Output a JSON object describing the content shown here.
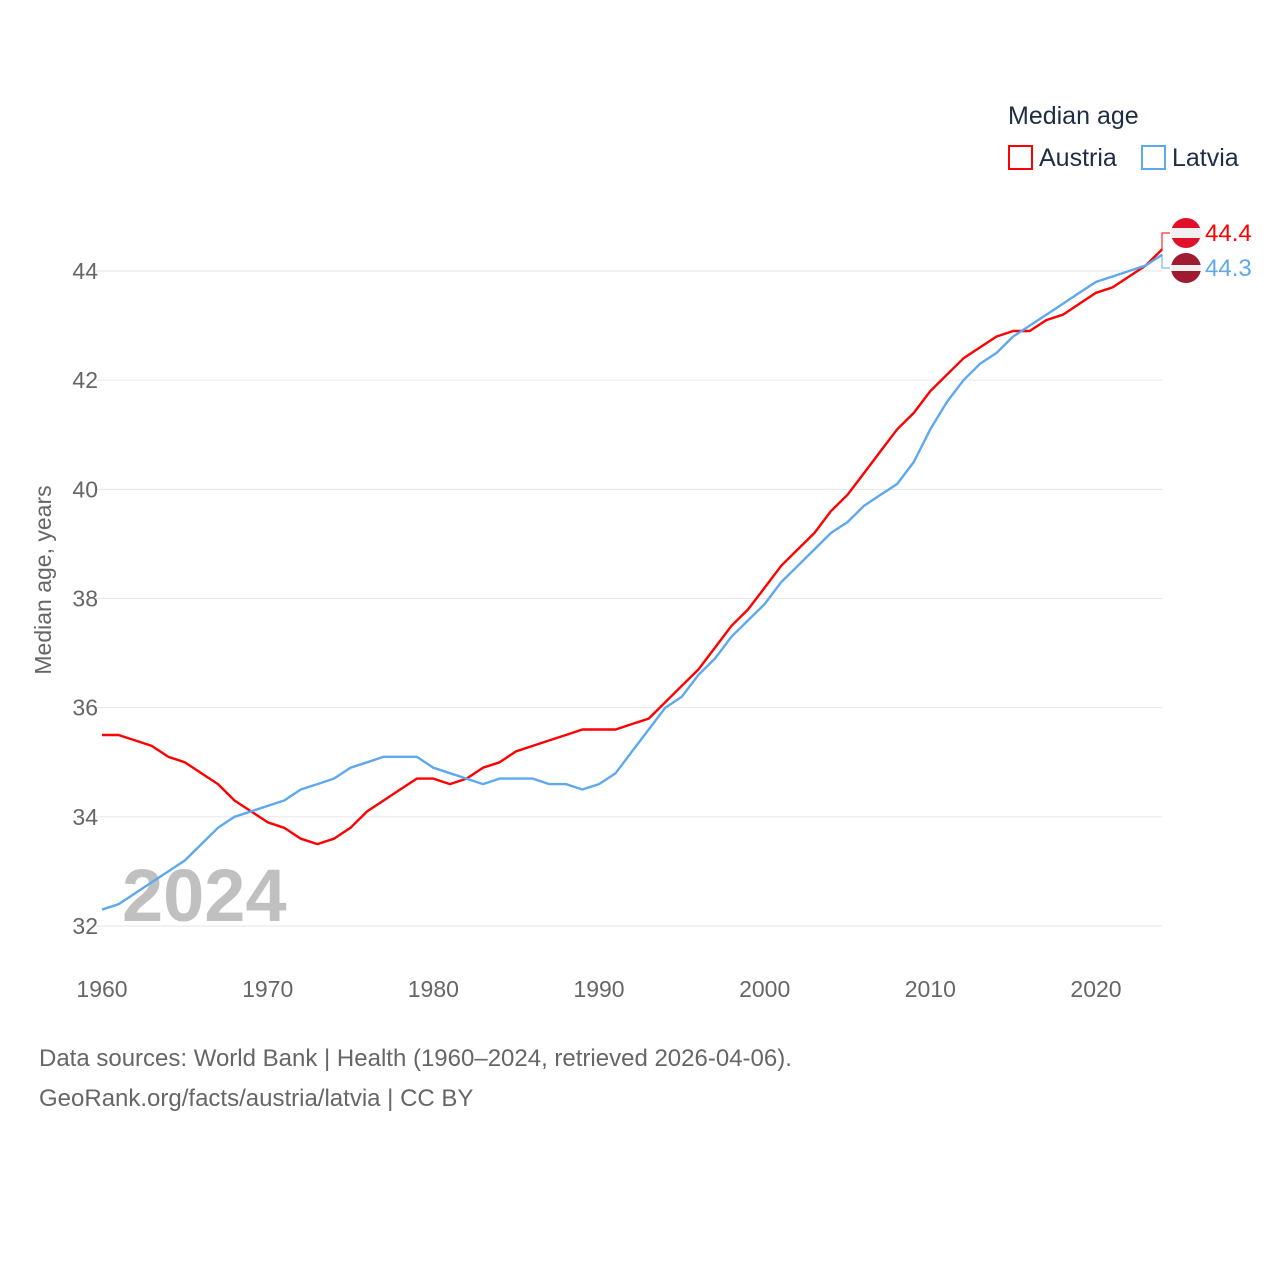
{
  "chart_data": {
    "type": "line",
    "legend_title": "Median age",
    "legend_placement": "top-right",
    "ylabel": "Median age, years",
    "xlabel": "",
    "watermark_year": "2024",
    "xlim": [
      1960,
      2024
    ],
    "ylim": [
      32,
      44.4
    ],
    "x_ticks": [
      "1960",
      "1970",
      "1980",
      "1990",
      "2000",
      "2010",
      "2020"
    ],
    "y_ticks": [
      "32",
      "34",
      "36",
      "38",
      "40",
      "42",
      "44"
    ],
    "grid": true,
    "x": [
      1960,
      1961,
      1962,
      1963,
      1964,
      1965,
      1966,
      1967,
      1968,
      1969,
      1970,
      1971,
      1972,
      1973,
      1974,
      1975,
      1976,
      1977,
      1978,
      1979,
      1980,
      1981,
      1982,
      1983,
      1984,
      1985,
      1986,
      1987,
      1988,
      1989,
      1990,
      1991,
      1992,
      1993,
      1994,
      1995,
      1996,
      1997,
      1998,
      1999,
      2000,
      2001,
      2002,
      2003,
      2004,
      2005,
      2006,
      2007,
      2008,
      2009,
      2010,
      2011,
      2012,
      2013,
      2014,
      2015,
      2016,
      2017,
      2018,
      2019,
      2020,
      2021,
      2022,
      2023,
      2024
    ],
    "series": [
      {
        "name": "Austria",
        "color": "#ff0000",
        "end_label": "44.4",
        "values": [
          35.5,
          35.5,
          35.4,
          35.3,
          35.1,
          35.0,
          34.8,
          34.6,
          34.3,
          34.1,
          33.9,
          33.8,
          33.6,
          33.5,
          33.6,
          33.8,
          34.1,
          34.3,
          34.5,
          34.7,
          34.7,
          34.6,
          34.7,
          34.9,
          35.0,
          35.2,
          35.3,
          35.4,
          35.5,
          35.6,
          35.6,
          35.6,
          35.7,
          35.8,
          36.1,
          36.4,
          36.7,
          37.1,
          37.5,
          37.8,
          38.2,
          38.6,
          38.9,
          39.2,
          39.6,
          39.9,
          40.3,
          40.7,
          41.1,
          41.4,
          41.8,
          42.1,
          42.4,
          42.6,
          42.8,
          42.9,
          42.9,
          43.1,
          43.2,
          43.4,
          43.6,
          43.7,
          43.9,
          44.1,
          44.4
        ]
      },
      {
        "name": "Latvia",
        "color": "#5ea8ee",
        "end_label": "44.3",
        "values": [
          32.3,
          32.4,
          32.6,
          32.8,
          33.0,
          33.2,
          33.5,
          33.8,
          34.0,
          34.1,
          34.2,
          34.3,
          34.5,
          34.6,
          34.7,
          34.9,
          35.0,
          35.1,
          35.1,
          35.1,
          34.9,
          34.8,
          34.7,
          34.6,
          34.7,
          34.7,
          34.7,
          34.6,
          34.6,
          34.5,
          34.6,
          34.8,
          35.2,
          35.6,
          36.0,
          36.2,
          36.6,
          36.9,
          37.3,
          37.6,
          37.9,
          38.3,
          38.6,
          38.9,
          39.2,
          39.4,
          39.7,
          39.9,
          40.1,
          40.5,
          41.1,
          41.6,
          42.0,
          42.3,
          42.5,
          42.8,
          43.0,
          43.2,
          43.4,
          43.6,
          43.8,
          43.9,
          44.0,
          44.1,
          44.3
        ]
      }
    ]
  },
  "footer": {
    "line1": "Data sources: World Bank | Health (1960–2024, retrieved 2026-04-06).",
    "line2": "GeoRank.org/facts/austria/latvia | CC BY"
  }
}
